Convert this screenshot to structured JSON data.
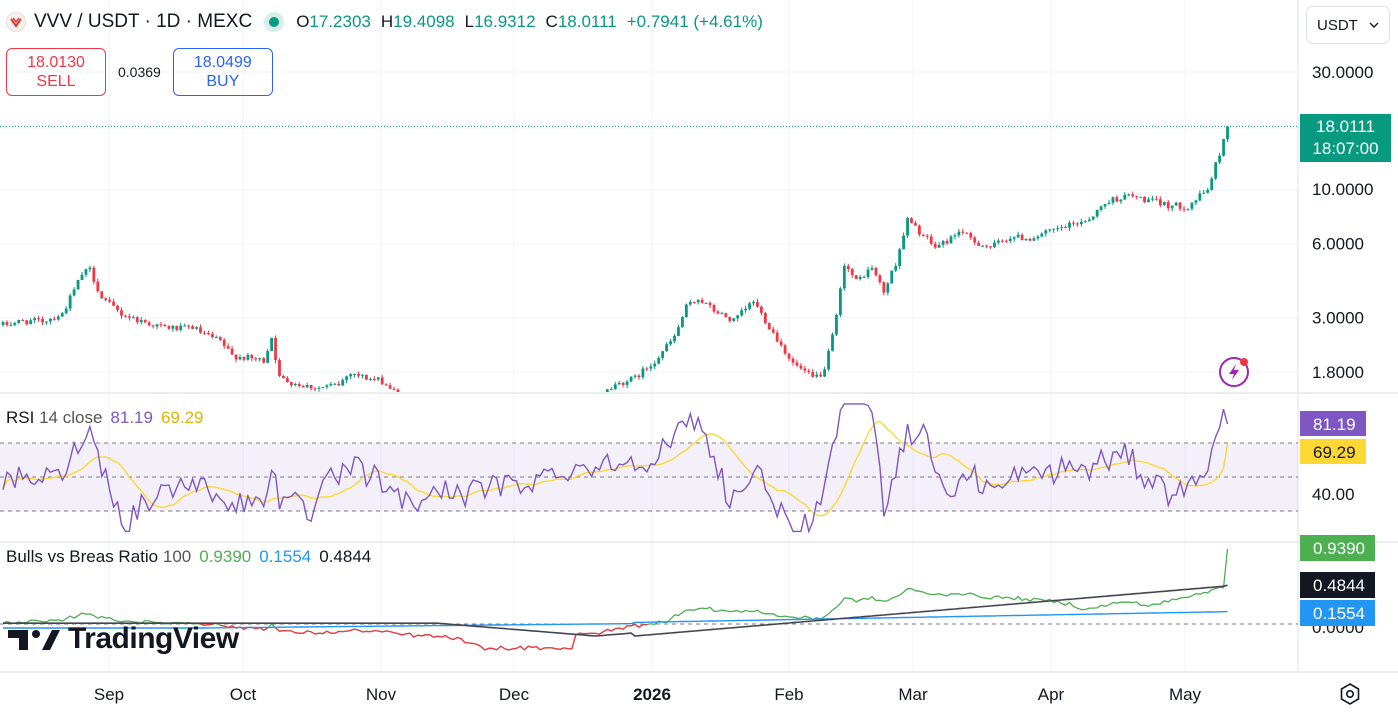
{
  "header": {
    "symbol": "VVV / USDT · 1D · MEXC",
    "o_key": "O",
    "o": "17.2303",
    "h_key": "H",
    "h": "19.4098",
    "l_key": "L",
    "l": "16.9312",
    "c_key": "C",
    "c": "18.0111",
    "change": "+0.7941 (+4.61%)"
  },
  "trade": {
    "sell_price": "18.0130",
    "sell_label": "SELL",
    "spread": "0.0369",
    "buy_price": "18.0499",
    "buy_label": "BUY"
  },
  "currency": {
    "label": "USDT",
    "chevron": "chevron-down-icon"
  },
  "last_price": {
    "price": "18.0111",
    "countdown": "18:07:00"
  },
  "rsi": {
    "title": "RSI",
    "params": "14 close",
    "rsi_value": "81.19",
    "ma_value": "69.29",
    "badge_rsi": "81.19",
    "badge_ma": "69.29",
    "axis_label": "40.00"
  },
  "bbr": {
    "title": "Bulls vs Breas Ratio",
    "param": "100",
    "bulls": "0.9390",
    "bears": "0.1554",
    "ratio": "0.4844",
    "badge_bulls": "0.9390",
    "badge_ratio": "0.4844",
    "badge_bears": "0.1554",
    "axis_label": "0.0000"
  },
  "branding": {
    "logo_text": "TradingView"
  },
  "colors": {
    "up": "#089981",
    "down": "#f23645",
    "rsi": "#7e57c2",
    "rsi_ma": "#fdd835",
    "bulls": "#4caf50",
    "bears": "#f23645",
    "ratio": "#434651",
    "blue": "#2196f3"
  },
  "chart_data": [
    {
      "type": "candlestick",
      "scale": "log",
      "y_ticks": [
        "30.0000",
        "10.0000",
        "6.0000",
        "3.0000",
        "1.8000"
      ],
      "x_ticks": [
        "Sep",
        "Oct",
        "Nov",
        "Dec",
        "2026",
        "Feb",
        "Mar",
        "Apr",
        "May"
      ],
      "last_close": 18.0111,
      "path_anchors": [
        [
          0,
          2.8
        ],
        [
          5,
          2.9
        ],
        [
          10,
          2.9
        ],
        [
          15,
          3.1
        ],
        [
          20,
          4.5
        ],
        [
          22,
          4.7
        ],
        [
          25,
          3.6
        ],
        [
          30,
          3.1
        ],
        [
          35,
          2.9
        ],
        [
          40,
          2.75
        ],
        [
          45,
          2.7
        ],
        [
          48,
          2.75
        ],
        [
          50,
          2.6
        ],
        [
          55,
          2.4
        ],
        [
          58,
          2.1
        ],
        [
          62,
          2.05
        ],
        [
          66,
          2.0
        ],
        [
          68,
          2.5
        ],
        [
          70,
          1.7
        ],
        [
          75,
          1.6
        ],
        [
          80,
          1.55
        ],
        [
          85,
          1.6
        ],
        [
          88,
          1.8
        ],
        [
          92,
          1.7
        ],
        [
          96,
          1.65
        ],
        [
          100,
          1.45
        ],
        [
          110,
          1.3
        ],
        [
          120,
          1.2
        ],
        [
          130,
          1.15
        ],
        [
          140,
          1.25
        ],
        [
          150,
          1.4
        ],
        [
          155,
          1.6
        ],
        [
          160,
          1.7
        ],
        [
          165,
          2.0
        ],
        [
          170,
          2.5
        ],
        [
          173,
          3.3
        ],
        [
          176,
          3.6
        ],
        [
          180,
          3.2
        ],
        [
          185,
          2.9
        ],
        [
          190,
          3.5
        ],
        [
          195,
          2.6
        ],
        [
          200,
          1.95
        ],
        [
          205,
          1.7
        ],
        [
          208,
          1.8
        ],
        [
          211,
          3.0
        ],
        [
          213,
          5.0
        ],
        [
          216,
          4.2
        ],
        [
          220,
          4.8
        ],
        [
          223,
          3.8
        ],
        [
          226,
          5.0
        ],
        [
          229,
          7.5
        ],
        [
          232,
          6.7
        ],
        [
          236,
          5.8
        ],
        [
          240,
          6.3
        ],
        [
          242,
          6.8
        ],
        [
          246,
          6.1
        ],
        [
          250,
          5.8
        ],
        [
          255,
          6.4
        ],
        [
          260,
          6.3
        ],
        [
          265,
          6.7
        ],
        [
          270,
          7.1
        ],
        [
          275,
          7.6
        ],
        [
          280,
          9.0
        ],
        [
          285,
          9.4
        ],
        [
          290,
          9.0
        ],
        [
          295,
          8.6
        ],
        [
          300,
          8.5
        ],
        [
          305,
          10.0
        ],
        [
          308,
          14.0
        ],
        [
          310,
          18.0
        ]
      ],
      "range_note": "visible candles span roughly 1.45 to 19.4",
      "rsi": {
        "levels": [
          70,
          50,
          30
        ],
        "last": 81.19,
        "ma_last": 69.29
      },
      "bulls_vs_bears": {
        "bulls_last": 0.939,
        "bears_last": 0.1554,
        "ratio_last": 0.4844
      }
    }
  ]
}
